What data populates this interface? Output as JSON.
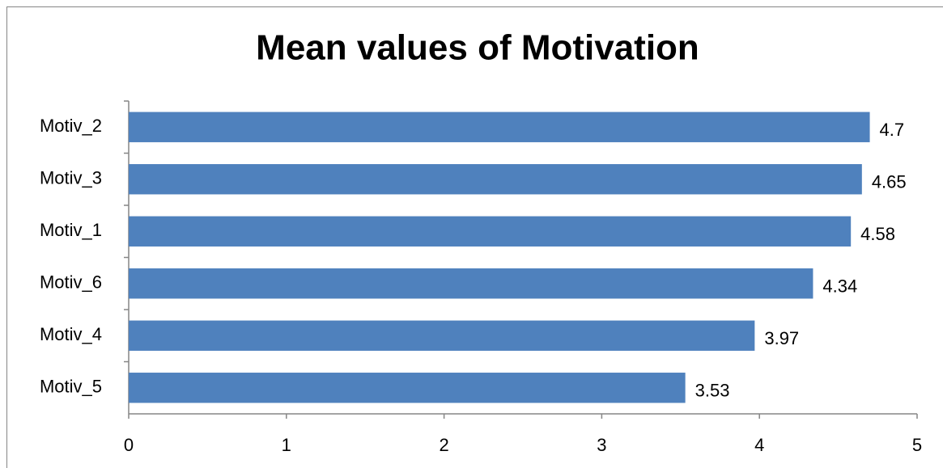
{
  "chart_data": {
    "type": "bar",
    "orientation": "horizontal",
    "title": "Mean values of Motivation",
    "categories": [
      "Motiv_2",
      "Motiv_3",
      "Motiv_1",
      "Motiv_6",
      "Motiv_4",
      "Motiv_5"
    ],
    "values": [
      4.7,
      4.65,
      4.58,
      4.34,
      3.97,
      3.53
    ],
    "color": "#4f81bd",
    "xlim": [
      0,
      5
    ],
    "xticks": [
      0,
      1,
      2,
      3,
      4,
      5
    ],
    "grid": false
  }
}
